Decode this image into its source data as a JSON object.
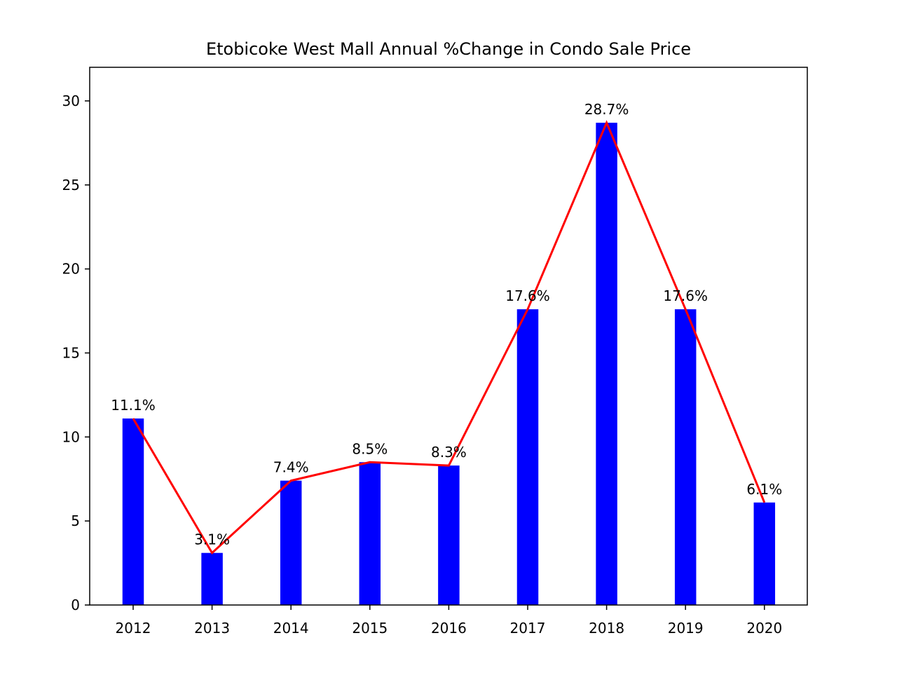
{
  "chart_data": {
    "type": "bar",
    "title": "Etobicoke West Mall Annual %Change in Condo Sale Price",
    "xlabel": "",
    "ylabel": "",
    "categories": [
      "2012",
      "2013",
      "2014",
      "2015",
      "2016",
      "2017",
      "2018",
      "2019",
      "2020"
    ],
    "values": [
      11.1,
      3.1,
      7.4,
      8.5,
      8.3,
      17.6,
      28.7,
      17.6,
      6.1
    ],
    "data_labels": [
      "11.1%",
      "3.1%",
      "7.4%",
      "8.5%",
      "8.3%",
      "17.6%",
      "28.7%",
      "17.6%",
      "6.1%"
    ],
    "overlay_line": true,
    "ylim": [
      0,
      32
    ],
    "yticks": [
      0,
      5,
      10,
      15,
      20,
      25,
      30
    ],
    "grid": false,
    "bar_color": "#0000ff",
    "line_color": "#ff0000"
  }
}
